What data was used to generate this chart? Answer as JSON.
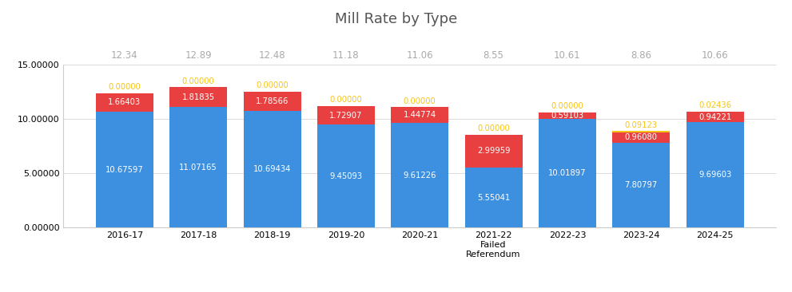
{
  "title": "Mill Rate by Type",
  "categories": [
    "2016-17",
    "2017-18",
    "2018-19",
    "2019-20",
    "2020-21",
    "2021-22\nFailed\nReferendum",
    "2022-23",
    "2023-24",
    "2024-25"
  ],
  "totals": [
    "12.34",
    "12.89",
    "12.48",
    "11.18",
    "11.06",
    "8.55",
    "10.61",
    "8.86",
    "10.66"
  ],
  "general_fund": [
    10.67597,
    11.07165,
    10.69434,
    9.45093,
    9.61226,
    5.55041,
    10.01897,
    7.80797,
    9.69603
  ],
  "debt_service": [
    1.66403,
    1.81835,
    1.78566,
    1.72907,
    1.44774,
    2.99959,
    0.59103,
    0.9608,
    0.94221
  ],
  "community_service": [
    0.0,
    0.0,
    0.0,
    0.0,
    0.0,
    0.0,
    0.0,
    0.09123,
    0.02436
  ],
  "general_fund_color": "#3d8fe0",
  "debt_service_color": "#e84040",
  "community_service_color": "#f5c518",
  "total_label_color": "#aaaaaa",
  "background_color": "#ffffff",
  "ylim": [
    0,
    15.0
  ],
  "yticks": [
    0.0,
    5.0,
    10.0,
    15.0
  ],
  "ytick_labels": [
    "0.00000",
    "5.00000",
    "10.00000",
    "15.00000"
  ]
}
